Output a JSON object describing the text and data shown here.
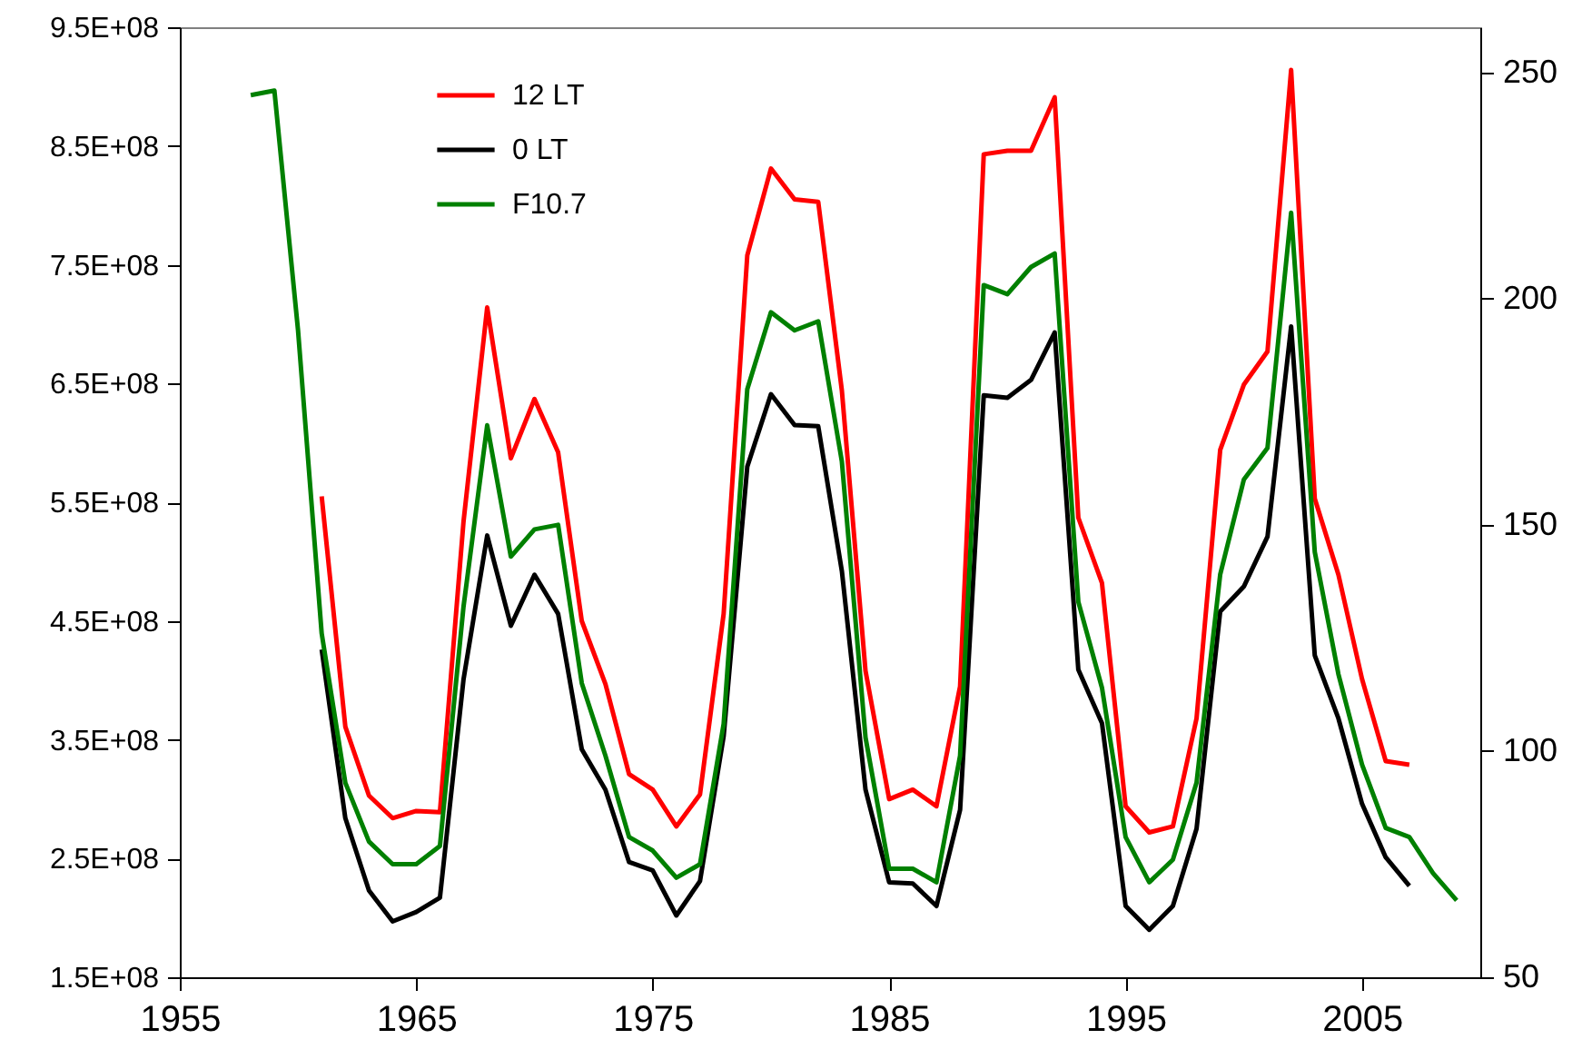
{
  "chart_data": {
    "type": "line",
    "legend": "top left",
    "xlim": [
      1955,
      2010
    ],
    "xticks": [
      1955,
      1965,
      1975,
      1985,
      1995,
      2005
    ],
    "ylim": [
      150000000,
      950000000
    ],
    "yticks": [
      {
        "value": 150000000,
        "label": "1.5E+08"
      },
      {
        "value": 250000000,
        "label": "2.5E+08"
      },
      {
        "value": 350000000,
        "label": "3.5E+08"
      },
      {
        "value": 450000000,
        "label": "4.5E+08"
      },
      {
        "value": 550000000,
        "label": "5.5E+08"
      },
      {
        "value": 650000000,
        "label": "6.5E+08"
      },
      {
        "value": 750000000,
        "label": "7.5E+08"
      },
      {
        "value": 850000000,
        "label": "8.5E+08"
      },
      {
        "value": 950000000,
        "label": "9.5E+08"
      }
    ],
    "y2lim": [
      50,
      260
    ],
    "y2ticks": [
      50,
      100,
      150,
      200,
      250
    ],
    "series": [
      {
        "name": "12 LT",
        "color": "#ff0000",
        "x": [
          1961,
          1962,
          1963,
          1964,
          1965,
          1966,
          1967,
          1968,
          1969,
          1970,
          1971,
          1972,
          1973,
          1974,
          1975,
          1976,
          1977,
          1978,
          1979,
          1980,
          1981,
          1982,
          1983,
          1984,
          1985,
          1986,
          1987,
          1988,
          1989,
          1990,
          1991,
          1992,
          1993,
          1994,
          1995,
          1996,
          1997,
          1998,
          1999,
          2000,
          2001,
          2002,
          2003,
          2004,
          2005,
          2006,
          2007
        ],
        "values": [
          555000000,
          361000000,
          303000000,
          284000000,
          290000000,
          289000000,
          534000000,
          714000000,
          587000000,
          637000000,
          592000000,
          450000000,
          397000000,
          321000000,
          308000000,
          277000000,
          304000000,
          456000000,
          758000000,
          831000000,
          805000000,
          803000000,
          644000000,
          408000000,
          300000000,
          308000000,
          294000000,
          395000000,
          843000000,
          846000000,
          846000000,
          891000000,
          537000000,
          482000000,
          294000000,
          272000000,
          277000000,
          368000000,
          594000000,
          649000000,
          677000000,
          914000000,
          553000000,
          489000000,
          401000000,
          332000000,
          329000000
        ]
      },
      {
        "name": "0 LT",
        "color": "#000000",
        "x": [
          1961,
          1962,
          1963,
          1964,
          1965,
          1966,
          1967,
          1968,
          1969,
          1970,
          1971,
          1972,
          1973,
          1974,
          1975,
          1976,
          1977,
          1978,
          1979,
          1980,
          1981,
          1982,
          1983,
          1984,
          1985,
          1986,
          1987,
          1988,
          1989,
          1990,
          1991,
          1992,
          1993,
          1994,
          1995,
          1996,
          1997,
          1998,
          1999,
          2000,
          2001,
          2002,
          2003,
          2004,
          2005,
          2006,
          2007
        ],
        "values": [
          426000000,
          284000000,
          223000000,
          197000000,
          205000000,
          217000000,
          401000000,
          522000000,
          446000000,
          489000000,
          456000000,
          342000000,
          308000000,
          247000000,
          240000000,
          202000000,
          231000000,
          353000000,
          580000000,
          641000000,
          615000000,
          614000000,
          492000000,
          308000000,
          230000000,
          229000000,
          210000000,
          291000000,
          640000000,
          638000000,
          653000000,
          693000000,
          409000000,
          364000000,
          210000000,
          190000000,
          210000000,
          275000000,
          458000000,
          479000000,
          521000000,
          698000000,
          421000000,
          368000000,
          296000000,
          251000000,
          227000000
        ]
      },
      {
        "name": "F10.7",
        "color": "#008000",
        "axis": "y2",
        "x": [
          1958,
          1959,
          1960,
          1961,
          1962,
          1963,
          1964,
          1965,
          1966,
          1967,
          1968,
          1969,
          1970,
          1971,
          1972,
          1973,
          1974,
          1975,
          1976,
          1977,
          1978,
          1979,
          1980,
          1981,
          1982,
          1983,
          1984,
          1985,
          1986,
          1987,
          1988,
          1989,
          1990,
          1991,
          1992,
          1993,
          1994,
          1995,
          1996,
          1997,
          1998,
          1999,
          2000,
          2001,
          2002,
          2003,
          2004,
          2005,
          2006,
          2007,
          2008,
          2009
        ],
        "values": [
          245,
          246,
          193,
          126,
          93,
          80,
          75,
          75,
          79,
          132,
          172,
          143,
          149,
          150,
          115,
          99,
          81,
          78,
          72,
          75,
          106,
          180,
          197,
          193,
          195,
          164,
          103,
          74,
          74,
          71,
          99,
          203,
          201,
          207,
          210,
          133,
          114,
          81,
          71,
          76,
          93,
          139,
          160,
          167,
          219,
          144,
          117,
          97,
          83,
          81,
          73,
          67
        ]
      }
    ]
  }
}
